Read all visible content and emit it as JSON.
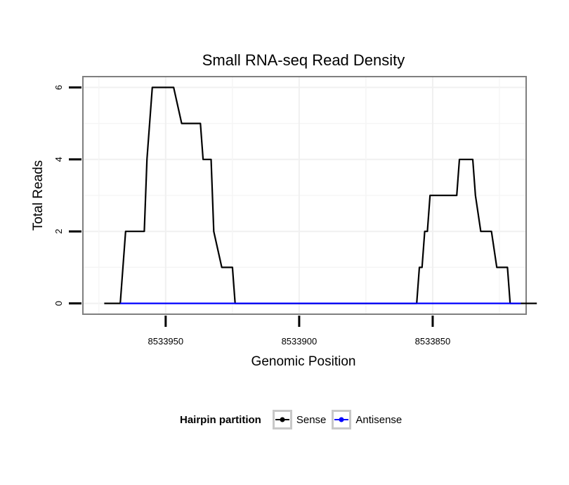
{
  "chart_data": {
    "type": "line",
    "title": "Small RNA-seq Read Density",
    "xlabel": "Genomic Position",
    "ylabel": "Total Reads",
    "x_reversed": true,
    "xlim": [
      8533981,
      8533815
    ],
    "ylim": [
      -0.3,
      6.3
    ],
    "x_ticks": [
      8533950,
      8533900,
      8533850
    ],
    "x_tick_labels": [
      "8533950",
      "8533900",
      "8533850"
    ],
    "y_ticks": [
      0,
      2,
      4,
      6
    ],
    "y_tick_labels": [
      "0",
      "2",
      "4",
      "6"
    ],
    "grid": true,
    "legend_position": "bottom",
    "legend_title": "Hairpin partition",
    "series": [
      {
        "name": "Sense",
        "color": "#000000",
        "x": [
          8533973,
          8533967,
          8533966,
          8533965,
          8533958,
          8533957,
          8533956,
          8533955,
          8533953,
          8533947,
          8533944,
          8533937,
          8533936,
          8533935,
          8533933,
          8533932,
          8533929,
          8533925,
          8533924,
          8533923,
          8533921,
          8533920,
          8533916,
          8533915,
          8533910,
          8533900,
          8533890,
          8533880,
          8533865,
          8533857,
          8533856,
          8533855,
          8533854,
          8533853,
          8533852,
          8533851,
          8533850,
          8533849,
          8533847,
          8533844,
          8533841,
          8533840,
          8533837,
          8533835,
          8533834,
          8533832,
          8533831,
          8533829,
          8533828,
          8533826,
          8533822,
          8533821,
          8533820,
          8533818,
          8533817,
          8533816,
          8533811
        ],
        "values": [
          0,
          0,
          1,
          2,
          2,
          4,
          5,
          6,
          6,
          6,
          5,
          5,
          4,
          4,
          4,
          2,
          1,
          1,
          0,
          0,
          0,
          0,
          0,
          0,
          0,
          0,
          0,
          0,
          0,
          0,
          0,
          1,
          1,
          2,
          2,
          3,
          3,
          3,
          3,
          3,
          3,
          4,
          4,
          4,
          3,
          2,
          2,
          2,
          2,
          1,
          1,
          0,
          0,
          0,
          0,
          0,
          0
        ]
      },
      {
        "name": "Antisense",
        "color": "#0000ff",
        "x": [
          8533967,
          8533924,
          8533857,
          8533817
        ],
        "values": [
          0,
          0,
          0,
          0
        ]
      }
    ]
  }
}
